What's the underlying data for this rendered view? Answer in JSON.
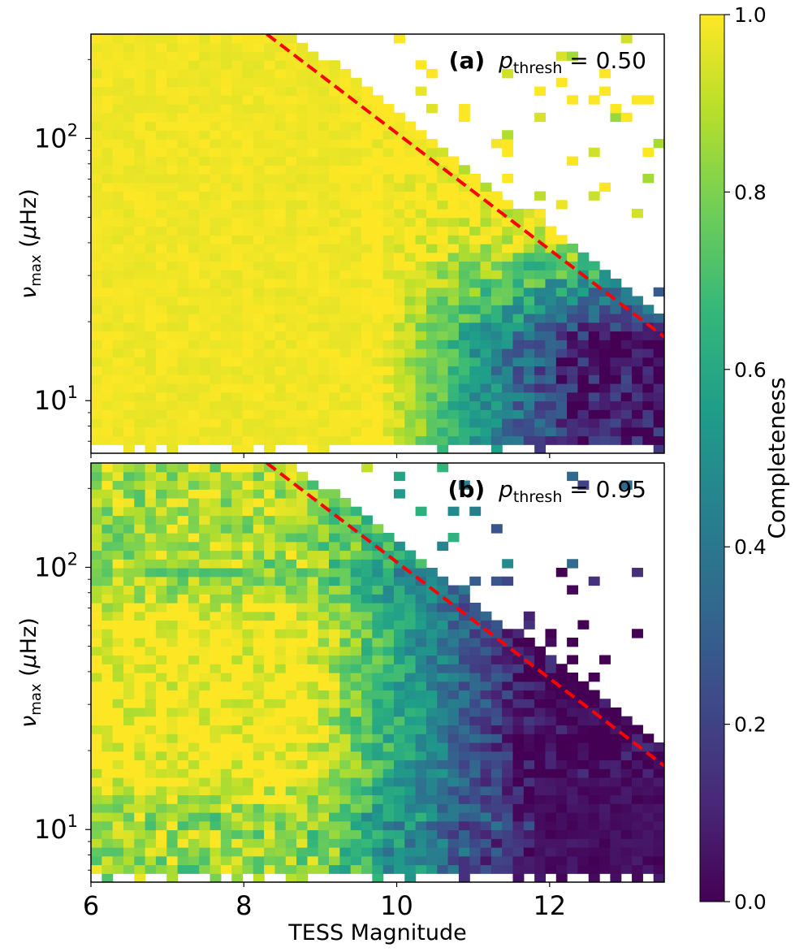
{
  "chart_data": [
    {
      "type": "heatmap",
      "panel_label": "(a)",
      "annotation": "p_thresh = 0.50",
      "p_thresh": 0.5,
      "annotation_parts": {
        "bold": "(a)",
        "symbol": "p",
        "subscript": "thresh",
        "rest": " = 0.50"
      },
      "xlabel": "",
      "ylabel": "ν_max (μHz)",
      "ylabel_parts": {
        "symbol": "ν",
        "subscript": "max",
        "rest": " (",
        "mu": "μ",
        "unit": "Hz)"
      },
      "xlim": [
        6,
        13.5
      ],
      "ylim": [
        6.3,
        250
      ],
      "yscale": "log",
      "y_ticks": [
        {
          "value": 10,
          "label": "10",
          "exp": "1"
        },
        {
          "value": 100,
          "label": "10",
          "exp": "2"
        }
      ],
      "detection_limit_line": {
        "x": [
          8.3,
          13.5
        ],
        "y": [
          250,
          17.5
        ],
        "color": "#ff0000",
        "style": "dashed"
      },
      "description_of_values": "completeness ~1 for bright stars / high numax; drops to ~0.3-0.5 near mag 11-13 and ~0 at faintest, low numax"
    },
    {
      "type": "heatmap",
      "panel_label": "(b)",
      "annotation": "p_thresh = 0.95",
      "p_thresh": 0.95,
      "annotation_parts": {
        "bold": "(b)",
        "symbol": "p",
        "subscript": "thresh",
        "rest": " = 0.95"
      },
      "xlabel": "TESS Magnitude",
      "ylabel": "ν_max (μHz)",
      "ylabel_parts": {
        "symbol": "ν",
        "subscript": "max",
        "rest": " (",
        "mu": "μ",
        "unit": "Hz)"
      },
      "xlim": [
        6,
        13.5
      ],
      "ylim": [
        6.3,
        250
      ],
      "yscale": "log",
      "y_ticks": [
        {
          "value": 10,
          "label": "10",
          "exp": "1"
        },
        {
          "value": 100,
          "label": "10",
          "exp": "2"
        }
      ],
      "x_ticks": [
        6,
        8,
        10,
        12
      ],
      "detection_limit_line": {
        "x": [
          8.3,
          13.5
        ],
        "y": [
          250,
          17.5
        ],
        "color": "#ff0000",
        "style": "dashed"
      },
      "description_of_values": "completeness ~1 for bright stars at mid numax; lower (~0.7-0.9) at high and low numax; drops to ~0 faint of mag 11"
    }
  ],
  "colorbar": {
    "label": "Completeness",
    "colormap": "viridis",
    "range": [
      0.0,
      1.0
    ],
    "ticks": [
      "0.0",
      "0.2",
      "0.4",
      "0.6",
      "0.8",
      "1.0"
    ]
  },
  "colors": {
    "line": "#ff0000",
    "viridis": [
      "#440154",
      "#482878",
      "#3e4989",
      "#31688e",
      "#26828e",
      "#1f9e89",
      "#35b779",
      "#6ece58",
      "#b5de2b",
      "#fde725"
    ]
  }
}
